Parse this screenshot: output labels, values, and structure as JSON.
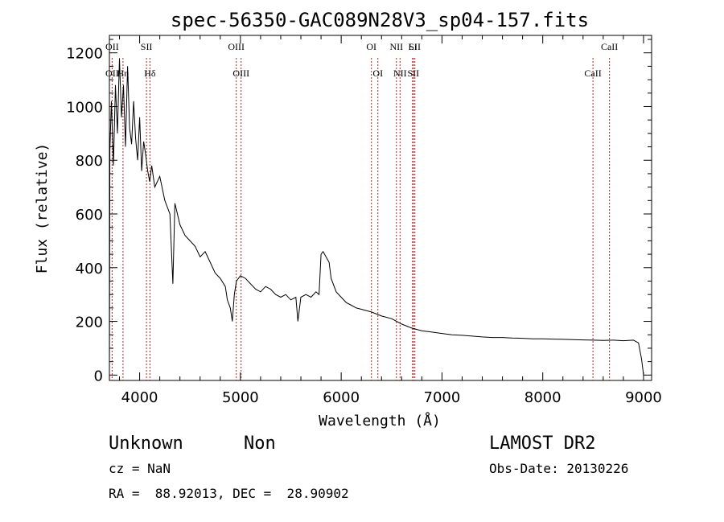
{
  "chart_data": {
    "type": "line",
    "title": "spec-56350-GAC089N28V3_sp04-157.fits",
    "xlabel": "Wavelength (Å)",
    "ylabel": "Flux (relative)",
    "xlim": [
      3700,
      9080
    ],
    "ylim": [
      -20,
      1265
    ],
    "x_ticks": [
      4000,
      5000,
      6000,
      7000,
      8000,
      9000
    ],
    "x_tick_labels": [
      "4000",
      "5000",
      "6000",
      "7000",
      "8000",
      "9000"
    ],
    "y_ticks": [
      0,
      200,
      400,
      600,
      800,
      1000,
      1200
    ],
    "y_tick_labels": [
      "0",
      "200",
      "400",
      "600",
      "800",
      "1000",
      "1200"
    ],
    "grid": false,
    "series": [
      {
        "color": "#000000",
        "points": [
          [
            3700,
            0
          ],
          [
            3705,
            840
          ],
          [
            3720,
            1020
          ],
          [
            3740,
            780
          ],
          [
            3760,
            1080
          ],
          [
            3780,
            900
          ],
          [
            3800,
            1180
          ],
          [
            3820,
            960
          ],
          [
            3840,
            1080
          ],
          [
            3860,
            850
          ],
          [
            3880,
            1150
          ],
          [
            3900,
            920
          ],
          [
            3920,
            860
          ],
          [
            3940,
            1020
          ],
          [
            3960,
            880
          ],
          [
            3980,
            800
          ],
          [
            4000,
            960
          ],
          [
            4020,
            760
          ],
          [
            4040,
            870
          ],
          [
            4060,
            820
          ],
          [
            4080,
            760
          ],
          [
            4100,
            720
          ],
          [
            4120,
            780
          ],
          [
            4150,
            700
          ],
          [
            4200,
            740
          ],
          [
            4250,
            650
          ],
          [
            4300,
            600
          ],
          [
            4330,
            340
          ],
          [
            4350,
            640
          ],
          [
            4400,
            560
          ],
          [
            4450,
            520
          ],
          [
            4500,
            500
          ],
          [
            4550,
            480
          ],
          [
            4600,
            440
          ],
          [
            4650,
            460
          ],
          [
            4700,
            420
          ],
          [
            4750,
            380
          ],
          [
            4800,
            360
          ],
          [
            4850,
            330
          ],
          [
            4870,
            280
          ],
          [
            4900,
            250
          ],
          [
            4920,
            200
          ],
          [
            4940,
            300
          ],
          [
            4960,
            350
          ],
          [
            5000,
            370
          ],
          [
            5050,
            360
          ],
          [
            5100,
            340
          ],
          [
            5150,
            320
          ],
          [
            5200,
            310
          ],
          [
            5250,
            330
          ],
          [
            5300,
            320
          ],
          [
            5350,
            300
          ],
          [
            5400,
            290
          ],
          [
            5450,
            300
          ],
          [
            5500,
            280
          ],
          [
            5550,
            290
          ],
          [
            5570,
            200
          ],
          [
            5600,
            290
          ],
          [
            5650,
            300
          ],
          [
            5700,
            290
          ],
          [
            5750,
            310
          ],
          [
            5780,
            300
          ],
          [
            5800,
            450
          ],
          [
            5820,
            460
          ],
          [
            5850,
            440
          ],
          [
            5880,
            420
          ],
          [
            5900,
            360
          ],
          [
            5950,
            310
          ],
          [
            6000,
            290
          ],
          [
            6050,
            270
          ],
          [
            6100,
            260
          ],
          [
            6150,
            250
          ],
          [
            6200,
            245
          ],
          [
            6300,
            235
          ],
          [
            6400,
            220
          ],
          [
            6500,
            210
          ],
          [
            6550,
            200
          ],
          [
            6600,
            190
          ],
          [
            6700,
            175
          ],
          [
            6800,
            165
          ],
          [
            6900,
            160
          ],
          [
            7000,
            155
          ],
          [
            7100,
            150
          ],
          [
            7200,
            148
          ],
          [
            7300,
            145
          ],
          [
            7400,
            142
          ],
          [
            7500,
            140
          ],
          [
            7600,
            140
          ],
          [
            7700,
            138
          ],
          [
            7800,
            137
          ],
          [
            7900,
            135
          ],
          [
            8000,
            135
          ],
          [
            8100,
            134
          ],
          [
            8200,
            133
          ],
          [
            8300,
            132
          ],
          [
            8400,
            131
          ],
          [
            8500,
            130
          ],
          [
            8600,
            129
          ],
          [
            8700,
            130
          ],
          [
            8800,
            128
          ],
          [
            8900,
            130
          ],
          [
            8950,
            120
          ],
          [
            8980,
            60
          ],
          [
            9000,
            0
          ]
        ]
      }
    ],
    "lines": [
      {
        "x": 3727,
        "label": "OII",
        "label2": "OII"
      },
      {
        "x": 3835,
        "label": "Hη"
      },
      {
        "x": 4068,
        "label": "SII"
      },
      {
        "x": 4102,
        "label": "Hδ"
      },
      {
        "x": 4959,
        "label": "OIII"
      },
      {
        "x": 5007,
        "label": "OIII"
      },
      {
        "x": 6300,
        "label": "OI"
      },
      {
        "x": 6364,
        "label": "OI"
      },
      {
        "x": 6548,
        "label": "NII"
      },
      {
        "x": 6584,
        "label": "NII"
      },
      {
        "x": 6708,
        "label": "Li"
      },
      {
        "x": 6716,
        "label": "SII"
      },
      {
        "x": 6731,
        "label": "SII"
      },
      {
        "x": 8498,
        "label": "CaII"
      },
      {
        "x": 8662,
        "label": "CaII"
      }
    ]
  },
  "info": {
    "obj_class": "Unknown",
    "subclass": "Non",
    "survey": "LAMOST DR2",
    "cz": "cz = NaN",
    "obs_date": "Obs-Date: 20130226",
    "coords": "RA =  88.92013, DEC =  28.90902"
  }
}
